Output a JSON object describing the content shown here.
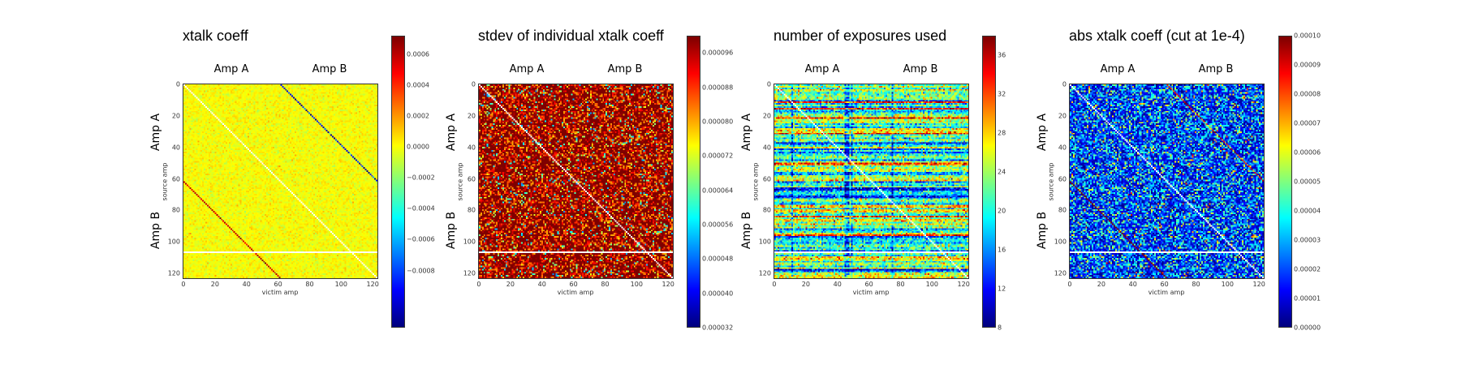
{
  "chart_data": [
    {
      "type": "heatmap",
      "title": "xtalk coeff",
      "xlabel": "victim amp",
      "ylabel": "source amp",
      "group_labels_top": [
        "Amp A",
        "Amp B"
      ],
      "group_labels_left": [
        "Amp A",
        "Amp B"
      ],
      "matrix_size": [
        124,
        124
      ],
      "xticks": [
        "0",
        "20",
        "40",
        "60",
        "80",
        "100",
        "120"
      ],
      "yticks": [
        "0",
        "20",
        "40",
        "60",
        "80",
        "100",
        "120"
      ],
      "colormap": "jet",
      "clim": [
        -0.00117,
        0.00072
      ],
      "colorbar_ticks": [
        "0.0006",
        "0.0004",
        "0.0002",
        "0.0000",
        "−0.0002",
        "−0.0004",
        "−0.0006",
        "−0.0008"
      ],
      "colorbar_tick_values": [
        0.0006,
        0.0004,
        0.0002,
        0.0,
        -0.0002,
        -0.0004,
        -0.0006,
        -0.0008
      ],
      "masked": {
        "diagonal": true,
        "row": 107
      },
      "background_value": 0.0,
      "features": [
        {
          "band": "source 0-61 -> victim source+62",
          "value": -0.001
        },
        {
          "band": "source 62-123 -> victim source-62",
          "value": 0.0006
        }
      ]
    },
    {
      "type": "heatmap",
      "title": "stdev of individual xtalk coeff",
      "xlabel": "victim amp",
      "ylabel": "source amp",
      "group_labels_top": [
        "Amp A",
        "Amp B"
      ],
      "group_labels_left": [
        "Amp A",
        "Amp B"
      ],
      "matrix_size": [
        124,
        124
      ],
      "xticks": [
        "0",
        "20",
        "40",
        "60",
        "80",
        "100",
        "120"
      ],
      "yticks": [
        "0",
        "20",
        "40",
        "60",
        "80",
        "100",
        "120"
      ],
      "colormap": "jet",
      "clim": [
        3.2e-05,
        0.0001
      ],
      "colorbar_ticks": [
        "0.000096",
        "0.000088",
        "0.000080",
        "0.000072",
        "0.000064",
        "0.000056",
        "0.000048",
        "0.000040",
        "0.000032"
      ],
      "colorbar_tick_values": [
        9.6e-05,
        8.8e-05,
        8e-05,
        7.2e-05,
        6.4e-05,
        5.6e-05,
        4.8e-05,
        4e-05,
        3.2e-05
      ],
      "masked": {
        "diagonal": true,
        "row": 107
      },
      "typical_value": 0.0001
    },
    {
      "type": "heatmap",
      "title": "number of exposures used",
      "xlabel": "victim amp",
      "ylabel": "source amp",
      "group_labels_top": [
        "Amp A",
        "Amp B"
      ],
      "group_labels_left": [
        "Amp A",
        "Amp B"
      ],
      "matrix_size": [
        124,
        124
      ],
      "xticks": [
        "0",
        "20",
        "40",
        "60",
        "80",
        "100",
        "120"
      ],
      "yticks": [
        "0",
        "20",
        "40",
        "60",
        "80",
        "100",
        "120"
      ],
      "colormap": "jet",
      "clim": [
        8,
        38
      ],
      "colorbar_ticks": [
        "36",
        "32",
        "28",
        "24",
        "20",
        "16",
        "12",
        "8"
      ],
      "colorbar_tick_values": [
        36,
        32,
        28,
        24,
        20,
        16,
        12,
        8
      ],
      "masked": {
        "diagonal": true,
        "row": 107
      },
      "high_rows": [
        11,
        15,
        21,
        31,
        50,
        84,
        96
      ],
      "low_rows": [
        66,
        67,
        71,
        118
      ]
    },
    {
      "type": "heatmap",
      "title": "abs xtalk coeff (cut at 1e-4)",
      "xlabel": "victim amp",
      "ylabel": "source amp",
      "group_labels_top": [
        "Amp A",
        "Amp B"
      ],
      "group_labels_left": [
        "Amp A",
        "Amp B"
      ],
      "matrix_size": [
        124,
        124
      ],
      "xticks": [
        "0",
        "20",
        "40",
        "60",
        "80",
        "100",
        "120"
      ],
      "yticks": [
        "0",
        "20",
        "40",
        "60",
        "80",
        "100",
        "120"
      ],
      "colormap": "jet",
      "clim": [
        0.0,
        0.0001
      ],
      "colorbar_ticks": [
        "0.00010",
        "0.00009",
        "0.00008",
        "0.00007",
        "0.00006",
        "0.00005",
        "0.00004",
        "0.00003",
        "0.00002",
        "0.00001",
        "0.00000"
      ],
      "colorbar_tick_values": [
        0.0001,
        9e-05,
        8e-05,
        7e-05,
        6e-05,
        5e-05,
        4e-05,
        3e-05,
        2e-05,
        1e-05,
        0.0
      ],
      "masked": {
        "diagonal": true,
        "row": 107
      },
      "features": [
        {
          "band": "source 62-123 -> victim source-62",
          "value": 0.0001
        },
        {
          "band": "source 0-61 -> victim source+62",
          "value": 0.0001
        }
      ]
    }
  ]
}
